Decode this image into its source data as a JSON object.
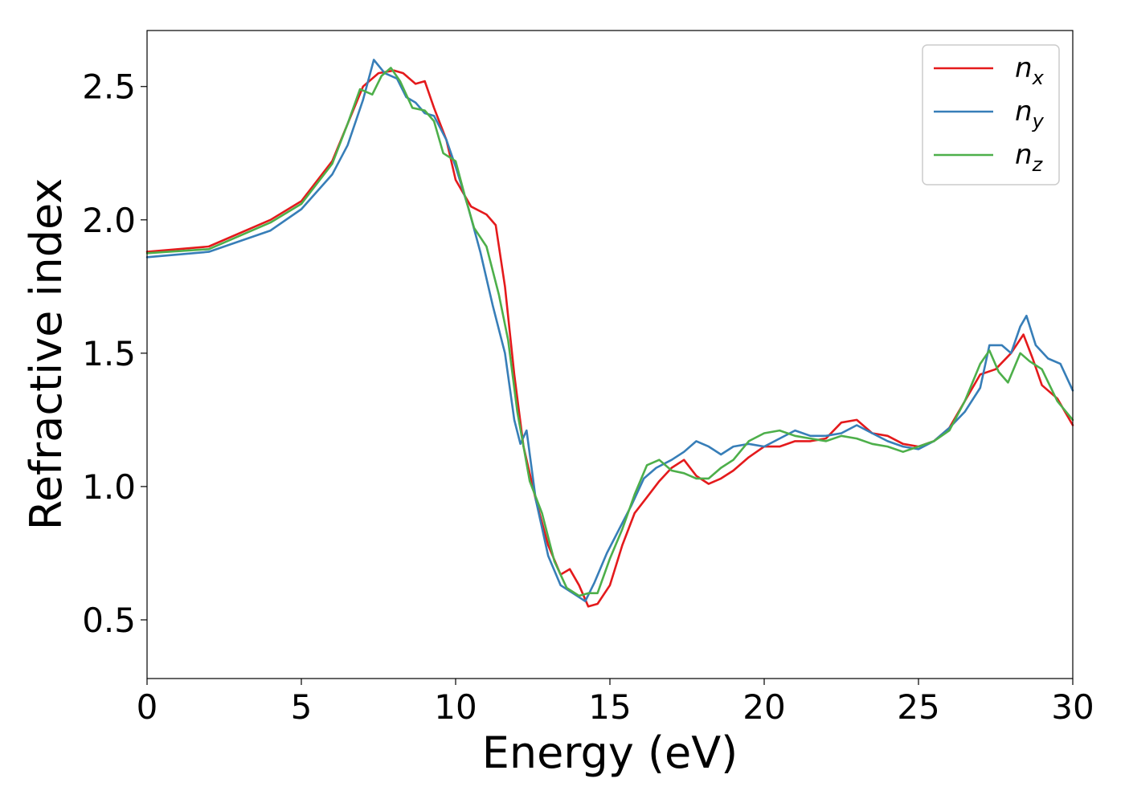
{
  "chart_data": {
    "type": "line",
    "xlabel": "Energy (eV)",
    "ylabel": "Refractive index",
    "xlim": [
      0,
      30
    ],
    "ylim": [
      0.28,
      2.71
    ],
    "x_ticks": [
      0,
      5,
      10,
      15,
      20,
      25,
      30
    ],
    "y_ticks": [
      0.5,
      1.0,
      1.5,
      2.0,
      2.5
    ],
    "x_tick_labels": [
      "0",
      "5",
      "10",
      "15",
      "20",
      "25",
      "30"
    ],
    "y_tick_labels": [
      "0.5",
      "1.0",
      "1.5",
      "2.0",
      "2.5"
    ],
    "grid": false,
    "legend": {
      "position": "top-right",
      "entries": [
        {
          "base": "n",
          "sub": "x"
        },
        {
          "base": "n",
          "sub": "y"
        },
        {
          "base": "n",
          "sub": "z"
        }
      ]
    },
    "series": [
      {
        "name": "n_x",
        "color": "#e41a1c",
        "points": [
          [
            0,
            1.88
          ],
          [
            2,
            1.9
          ],
          [
            4,
            2.0
          ],
          [
            5,
            2.07
          ],
          [
            6,
            2.22
          ],
          [
            6.5,
            2.36
          ],
          [
            7,
            2.5
          ],
          [
            7.5,
            2.55
          ],
          [
            8,
            2.56
          ],
          [
            8.3,
            2.55
          ],
          [
            8.7,
            2.51
          ],
          [
            9,
            2.52
          ],
          [
            9.3,
            2.42
          ],
          [
            9.7,
            2.3
          ],
          [
            10,
            2.15
          ],
          [
            10.5,
            2.05
          ],
          [
            11,
            2.02
          ],
          [
            11.3,
            1.98
          ],
          [
            11.6,
            1.75
          ],
          [
            11.9,
            1.42
          ],
          [
            12.2,
            1.15
          ],
          [
            12.6,
            0.95
          ],
          [
            13,
            0.78
          ],
          [
            13.4,
            0.67
          ],
          [
            13.7,
            0.69
          ],
          [
            14,
            0.63
          ],
          [
            14.3,
            0.55
          ],
          [
            14.6,
            0.56
          ],
          [
            15,
            0.63
          ],
          [
            15.4,
            0.78
          ],
          [
            15.8,
            0.9
          ],
          [
            16.2,
            0.96
          ],
          [
            16.6,
            1.02
          ],
          [
            17,
            1.07
          ],
          [
            17.4,
            1.1
          ],
          [
            17.8,
            1.04
          ],
          [
            18.2,
            1.01
          ],
          [
            18.6,
            1.03
          ],
          [
            19,
            1.06
          ],
          [
            19.5,
            1.11
          ],
          [
            20,
            1.15
          ],
          [
            20.5,
            1.15
          ],
          [
            21,
            1.17
          ],
          [
            21.5,
            1.17
          ],
          [
            22,
            1.18
          ],
          [
            22.5,
            1.24
          ],
          [
            23,
            1.25
          ],
          [
            23.5,
            1.2
          ],
          [
            24,
            1.19
          ],
          [
            24.5,
            1.16
          ],
          [
            25,
            1.15
          ],
          [
            25.5,
            1.17
          ],
          [
            26,
            1.22
          ],
          [
            26.5,
            1.32
          ],
          [
            27,
            1.42
          ],
          [
            27.5,
            1.44
          ],
          [
            28,
            1.5
          ],
          [
            28.4,
            1.57
          ],
          [
            28.7,
            1.48
          ],
          [
            29,
            1.38
          ],
          [
            29.5,
            1.33
          ],
          [
            30,
            1.23
          ]
        ]
      },
      {
        "name": "n_y",
        "color": "#377eb8",
        "points": [
          [
            0,
            1.86
          ],
          [
            2,
            1.88
          ],
          [
            4,
            1.96
          ],
          [
            5,
            2.04
          ],
          [
            6,
            2.17
          ],
          [
            6.5,
            2.28
          ],
          [
            7,
            2.45
          ],
          [
            7.35,
            2.6
          ],
          [
            7.7,
            2.55
          ],
          [
            8.1,
            2.53
          ],
          [
            8.4,
            2.46
          ],
          [
            8.7,
            2.44
          ],
          [
            9,
            2.4
          ],
          [
            9.3,
            2.39
          ],
          [
            9.7,
            2.3
          ],
          [
            10,
            2.2
          ],
          [
            10.4,
            2.05
          ],
          [
            10.8,
            1.88
          ],
          [
            11.2,
            1.68
          ],
          [
            11.6,
            1.5
          ],
          [
            11.9,
            1.25
          ],
          [
            12.1,
            1.16
          ],
          [
            12.3,
            1.21
          ],
          [
            12.6,
            0.95
          ],
          [
            13,
            0.74
          ],
          [
            13.4,
            0.63
          ],
          [
            13.8,
            0.6
          ],
          [
            14.2,
            0.57
          ],
          [
            14.5,
            0.64
          ],
          [
            14.9,
            0.75
          ],
          [
            15.3,
            0.84
          ],
          [
            15.7,
            0.93
          ],
          [
            16.1,
            1.03
          ],
          [
            16.5,
            1.07
          ],
          [
            17,
            1.1
          ],
          [
            17.4,
            1.13
          ],
          [
            17.8,
            1.17
          ],
          [
            18.2,
            1.15
          ],
          [
            18.6,
            1.12
          ],
          [
            19,
            1.15
          ],
          [
            19.5,
            1.16
          ],
          [
            20,
            1.15
          ],
          [
            20.5,
            1.18
          ],
          [
            21,
            1.21
          ],
          [
            21.5,
            1.19
          ],
          [
            22,
            1.19
          ],
          [
            22.5,
            1.2
          ],
          [
            23,
            1.23
          ],
          [
            23.5,
            1.2
          ],
          [
            24,
            1.17
          ],
          [
            24.5,
            1.15
          ],
          [
            25,
            1.14
          ],
          [
            25.5,
            1.17
          ],
          [
            26,
            1.22
          ],
          [
            26.5,
            1.28
          ],
          [
            27,
            1.37
          ],
          [
            27.3,
            1.53
          ],
          [
            27.7,
            1.53
          ],
          [
            28,
            1.5
          ],
          [
            28.3,
            1.6
          ],
          [
            28.5,
            1.64
          ],
          [
            28.8,
            1.53
          ],
          [
            29.2,
            1.48
          ],
          [
            29.6,
            1.46
          ],
          [
            30,
            1.36
          ]
        ]
      },
      {
        "name": "n_z",
        "color": "#4daf4a",
        "points": [
          [
            0,
            1.875
          ],
          [
            2,
            1.89
          ],
          [
            4,
            1.99
          ],
          [
            5,
            2.06
          ],
          [
            6,
            2.21
          ],
          [
            6.5,
            2.36
          ],
          [
            6.9,
            2.49
          ],
          [
            7.3,
            2.47
          ],
          [
            7.6,
            2.54
          ],
          [
            7.9,
            2.57
          ],
          [
            8.2,
            2.52
          ],
          [
            8.6,
            2.42
          ],
          [
            9,
            2.41
          ],
          [
            9.3,
            2.37
          ],
          [
            9.6,
            2.25
          ],
          [
            10,
            2.22
          ],
          [
            10.3,
            2.09
          ],
          [
            10.6,
            1.97
          ],
          [
            11,
            1.9
          ],
          [
            11.4,
            1.72
          ],
          [
            11.7,
            1.55
          ],
          [
            12,
            1.28
          ],
          [
            12.4,
            1.02
          ],
          [
            12.8,
            0.9
          ],
          [
            13.2,
            0.72
          ],
          [
            13.6,
            0.62
          ],
          [
            14,
            0.59
          ],
          [
            14.3,
            0.6
          ],
          [
            14.6,
            0.6
          ],
          [
            15,
            0.73
          ],
          [
            15.4,
            0.84
          ],
          [
            15.8,
            0.97
          ],
          [
            16.2,
            1.08
          ],
          [
            16.6,
            1.1
          ],
          [
            17,
            1.06
          ],
          [
            17.4,
            1.05
          ],
          [
            17.8,
            1.03
          ],
          [
            18.2,
            1.03
          ],
          [
            18.6,
            1.07
          ],
          [
            19,
            1.1
          ],
          [
            19.5,
            1.17
          ],
          [
            20,
            1.2
          ],
          [
            20.5,
            1.21
          ],
          [
            21,
            1.19
          ],
          [
            21.5,
            1.18
          ],
          [
            22,
            1.17
          ],
          [
            22.5,
            1.19
          ],
          [
            23,
            1.18
          ],
          [
            23.5,
            1.16
          ],
          [
            24,
            1.15
          ],
          [
            24.5,
            1.13
          ],
          [
            25,
            1.15
          ],
          [
            25.5,
            1.17
          ],
          [
            26,
            1.21
          ],
          [
            26.5,
            1.32
          ],
          [
            27,
            1.46
          ],
          [
            27.3,
            1.51
          ],
          [
            27.6,
            1.43
          ],
          [
            27.9,
            1.39
          ],
          [
            28.3,
            1.5
          ],
          [
            28.6,
            1.47
          ],
          [
            29,
            1.44
          ],
          [
            29.5,
            1.32
          ],
          [
            30,
            1.25
          ]
        ]
      }
    ]
  }
}
